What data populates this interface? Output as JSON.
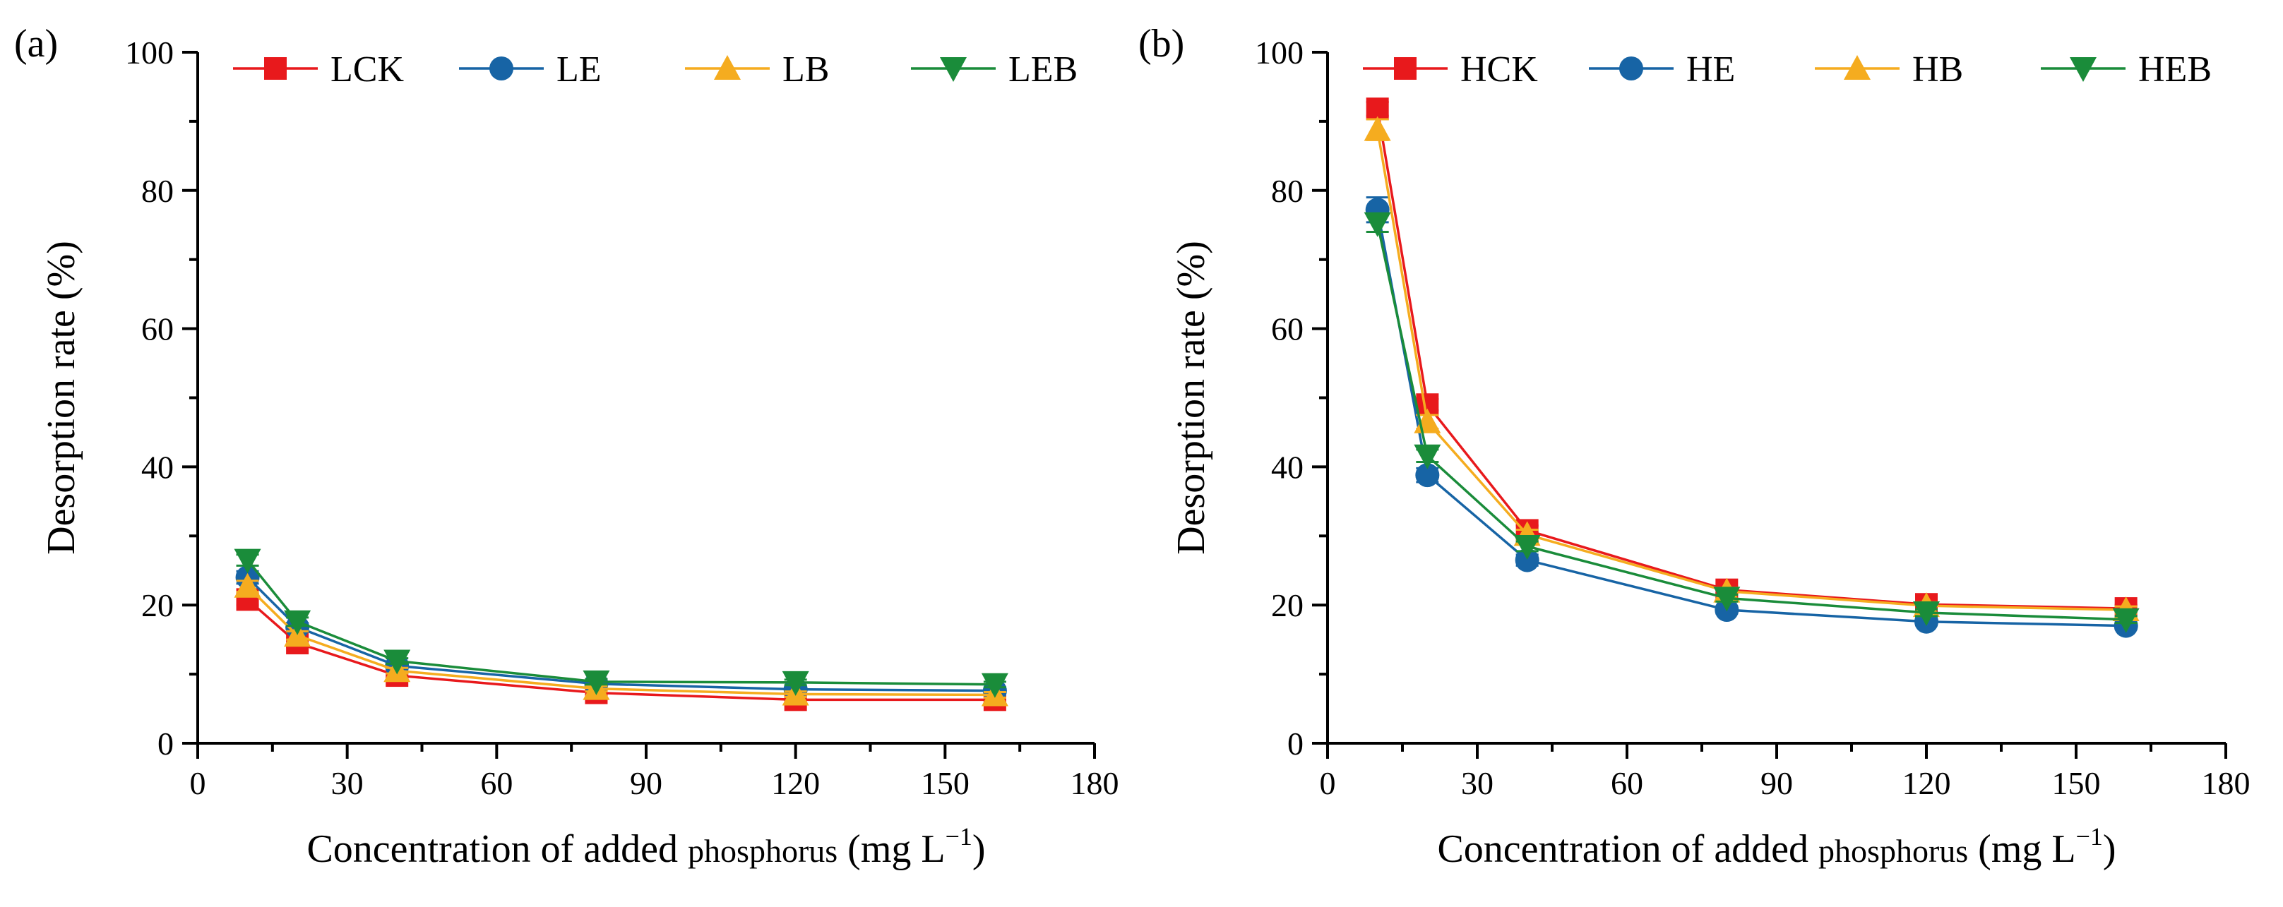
{
  "figure": {
    "panels": [
      {
        "label": "(a)"
      },
      {
        "label": "(b)"
      }
    ]
  },
  "chart_data": [
    {
      "type": "line",
      "panel_label": "(a)",
      "title": "",
      "xlabel_main": "Concentration of added ",
      "xlabel_small": "phosphorus",
      "xlabel_unit_open": " (mg L",
      "xlabel_exp": "−1",
      "xlabel_unit_close": ")",
      "ylabel": "Desorption rate (%)",
      "xlim": [
        0,
        180
      ],
      "ylim": [
        0,
        100
      ],
      "xticks": [
        0,
        30,
        60,
        90,
        120,
        150,
        180
      ],
      "yticks": [
        0,
        20,
        40,
        60,
        80,
        100
      ],
      "grid": false,
      "legend_position": "top",
      "x": [
        10,
        20,
        40,
        80,
        120,
        160
      ],
      "series": [
        {
          "name": "LCK",
          "color": "#e8191c",
          "marker": "square",
          "values": [
            20.8,
            14.5,
            9.8,
            7.3,
            6.3,
            6.3
          ],
          "errors": [
            0.8,
            0.6,
            0.4,
            0.4,
            0.4,
            0.4
          ]
        },
        {
          "name": "LE",
          "color": "#1764a5",
          "marker": "circle",
          "values": [
            24.0,
            16.8,
            11.2,
            8.6,
            7.8,
            7.6
          ],
          "errors": [
            0.9,
            0.6,
            0.4,
            0.4,
            0.4,
            0.4
          ]
        },
        {
          "name": "LB",
          "color": "#f5ac1f",
          "marker": "triangle-up",
          "values": [
            22.7,
            15.6,
            10.5,
            7.9,
            7.1,
            7.0
          ],
          "errors": [
            0.8,
            0.6,
            0.4,
            0.4,
            0.4,
            0.4
          ]
        },
        {
          "name": "LEB",
          "color": "#1a8c3a",
          "marker": "triangle-down",
          "values": [
            26.5,
            17.6,
            11.9,
            8.9,
            8.8,
            8.5
          ],
          "errors": [
            0.8,
            0.6,
            0.4,
            0.4,
            0.4,
            0.4
          ]
        }
      ]
    },
    {
      "type": "line",
      "panel_label": "(b)",
      "title": "",
      "xlabel_main": "Concentration of added ",
      "xlabel_small": "phosphorus",
      "xlabel_unit_open": " (mg L",
      "xlabel_exp": "−1",
      "xlabel_unit_close": ")",
      "ylabel": "Desorption rate (%)",
      "xlim": [
        0,
        180
      ],
      "ylim": [
        0,
        100
      ],
      "xticks": [
        0,
        30,
        60,
        90,
        120,
        150,
        180
      ],
      "yticks": [
        0,
        20,
        40,
        60,
        80,
        100
      ],
      "grid": false,
      "legend_position": "top",
      "x": [
        10,
        20,
        40,
        80,
        120,
        160
      ],
      "series": [
        {
          "name": "HCK",
          "color": "#e8191c",
          "marker": "square",
          "values": [
            91.8,
            49.0,
            30.8,
            22.2,
            20.1,
            19.5
          ],
          "errors": [
            1.0,
            0.8,
            0.7,
            0.5,
            0.5,
            0.5
          ]
        },
        {
          "name": "HE",
          "color": "#1764a5",
          "marker": "circle",
          "values": [
            77.2,
            38.8,
            26.5,
            19.3,
            17.6,
            17.0
          ],
          "errors": [
            1.8,
            1.0,
            0.8,
            0.5,
            0.5,
            0.5
          ]
        },
        {
          "name": "HB",
          "color": "#f5ac1f",
          "marker": "triangle-up",
          "values": [
            88.8,
            46.5,
            30.2,
            22.0,
            19.9,
            19.3
          ],
          "errors": [
            1.5,
            1.0,
            0.7,
            0.5,
            0.5,
            0.5
          ]
        },
        {
          "name": "HEB",
          "color": "#1a8c3a",
          "marker": "triangle-down",
          "values": [
            75.2,
            41.6,
            28.5,
            21.0,
            18.9,
            17.9
          ],
          "errors": [
            1.2,
            0.9,
            0.7,
            0.5,
            0.5,
            0.5
          ]
        }
      ]
    }
  ]
}
